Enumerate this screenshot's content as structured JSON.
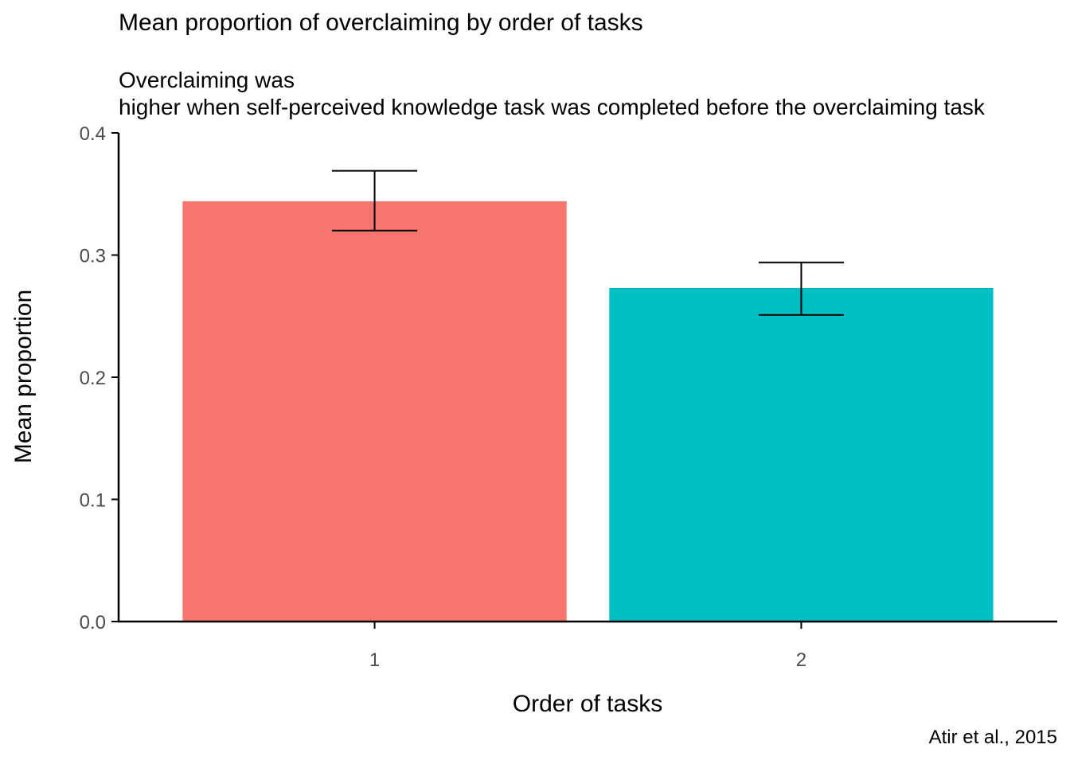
{
  "chart_data": {
    "type": "bar",
    "title": "Mean proportion of overclaiming by order of tasks",
    "subtitle": [
      "Overclaiming was",
      "higher when self-perceived knowledge task was completed before the overclaiming task"
    ],
    "caption": "Atir et al., 2015",
    "xlabel": "Order of tasks",
    "ylabel": "Mean proportion",
    "categories": [
      "1",
      "2"
    ],
    "values": [
      0.344,
      0.273
    ],
    "error_bars": [
      {
        "lower": 0.32,
        "upper": 0.369
      },
      {
        "lower": 0.251,
        "upper": 0.294
      }
    ],
    "bar_colors": [
      "#F8766D",
      "#00BFC4"
    ],
    "ylim": [
      0,
      0.4
    ],
    "yticks": [
      0.0,
      0.1,
      0.2,
      0.3,
      0.4
    ],
    "ytick_labels": [
      "0.0",
      "0.1",
      "0.2",
      "0.3",
      "0.4"
    ],
    "grid": false,
    "legend": "none"
  }
}
